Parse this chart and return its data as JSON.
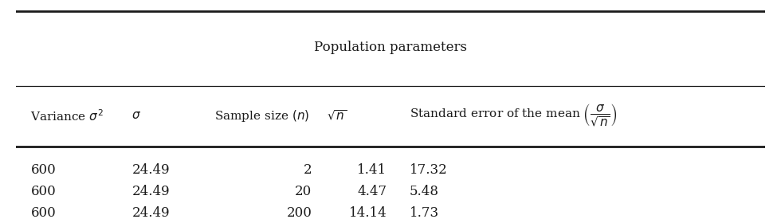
{
  "title": "Population parameters",
  "header_labels": [
    "Variance $\\sigma^2$",
    "$\\sigma$",
    "Sample size $(n)$",
    "$\\sqrt{n}$",
    "Standard error of the mean $\\left(\\dfrac{\\sigma}{\\sqrt{n}}\\right)$"
  ],
  "rows": [
    [
      "600",
      "24.49",
      "2",
      "1.41",
      "17.32"
    ],
    [
      "600",
      "24.49",
      "20",
      "4.47",
      "5.48"
    ],
    [
      "600",
      "24.49",
      "200",
      "14.14",
      "1.73"
    ]
  ],
  "background_color": "#ffffff",
  "line_color": "#1a1a1a",
  "text_color": "#1a1a1a",
  "title_fontsize": 12,
  "header_fontsize": 11,
  "data_fontsize": 12
}
